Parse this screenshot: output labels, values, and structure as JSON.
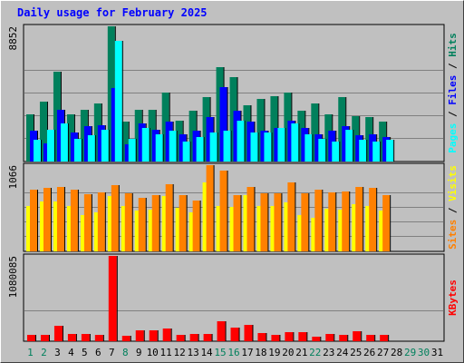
{
  "title": "Daily usage for February 2025",
  "colors": {
    "hits": "#00805c",
    "files": "#0000ff",
    "pages": "#00ffff",
    "visits": "#ffff00",
    "sites": "#ff8000",
    "kbytes": "#ff0000",
    "weekend_day": "#00805c",
    "weekday": "#000000"
  },
  "chart_data": [
    {
      "type": "bar",
      "title": "Hits / Files / Pages",
      "ylabel_max": "8852",
      "ylim": [
        0,
        8852
      ],
      "legend": [
        {
          "name": "Pages",
          "color": "#00ffff"
        },
        {
          "name": "Files",
          "color": "#0000ff"
        },
        {
          "name": "Hits",
          "color": "#00805c"
        }
      ],
      "categories": [
        1,
        2,
        3,
        4,
        5,
        6,
        7,
        8,
        9,
        10,
        11,
        12,
        13,
        14,
        15,
        16,
        17,
        18,
        19,
        20,
        21,
        22,
        23,
        24,
        25,
        26,
        27,
        28
      ],
      "series": [
        {
          "name": "Hits",
          "values": [
            3100,
            3900,
            5900,
            3100,
            3400,
            3800,
            8850,
            2600,
            3400,
            3400,
            4500,
            2700,
            3300,
            4200,
            6200,
            5500,
            3700,
            4100,
            4300,
            4500,
            3300,
            3800,
            3100,
            4200,
            3000,
            2900,
            2600,
            0
          ]
        },
        {
          "name": "Files",
          "values": [
            2000,
            1200,
            3400,
            1900,
            2300,
            2400,
            4800,
            1100,
            2500,
            2100,
            2600,
            1800,
            2000,
            2900,
            4900,
            3300,
            2600,
            2000,
            2200,
            2700,
            2200,
            1800,
            2000,
            2300,
            1700,
            1800,
            1600,
            0
          ]
        },
        {
          "name": "Pages",
          "values": [
            1400,
            2100,
            2500,
            1500,
            1700,
            2100,
            7900,
            1500,
            2200,
            1800,
            2000,
            1300,
            1600,
            1900,
            2000,
            2700,
            1900,
            1900,
            2200,
            2500,
            1800,
            1500,
            1300,
            2100,
            1400,
            1300,
            1400,
            0
          ]
        }
      ]
    },
    {
      "type": "bar",
      "title": "Visits / Sites",
      "ylabel_max": "1066",
      "ylim": [
        0,
        1066
      ],
      "legend": [
        {
          "name": "Sites",
          "color": "#ff8000"
        },
        {
          "name": "Visits",
          "color": "#ffff00"
        }
      ],
      "categories": [
        1,
        2,
        3,
        4,
        5,
        6,
        7,
        8,
        9,
        10,
        11,
        12,
        13,
        14,
        15,
        16,
        17,
        18,
        19,
        20,
        21,
        22,
        23,
        24,
        25,
        26,
        27,
        28
      ],
      "series": [
        {
          "name": "Visits",
          "values": [
            560,
            620,
            620,
            560,
            450,
            480,
            680,
            560,
            500,
            520,
            690,
            540,
            480,
            850,
            560,
            550,
            700,
            560,
            560,
            610,
            450,
            420,
            530,
            520,
            580,
            560,
            510,
            0
          ]
        },
        {
          "name": "Sites",
          "values": [
            760,
            790,
            800,
            760,
            710,
            730,
            820,
            720,
            660,
            700,
            830,
            700,
            630,
            1066,
            1000,
            700,
            800,
            720,
            720,
            850,
            720,
            760,
            730,
            740,
            800,
            790,
            700,
            0
          ]
        }
      ]
    },
    {
      "type": "bar",
      "title": "KBytes",
      "ylabel_max": "1080085",
      "ylim": [
        0,
        1080085
      ],
      "legend": [
        {
          "name": "KBytes",
          "color": "#ff0000"
        }
      ],
      "categories": [
        1,
        2,
        3,
        4,
        5,
        6,
        7,
        8,
        9,
        10,
        11,
        12,
        13,
        14,
        15,
        16,
        17,
        18,
        19,
        20,
        21,
        22,
        23,
        24,
        25,
        26,
        27,
        28
      ],
      "series": [
        {
          "name": "KBytes",
          "values": [
            85000,
            85000,
            190000,
            90000,
            90000,
            75000,
            1080085,
            65000,
            140000,
            140000,
            160000,
            80000,
            90000,
            95000,
            250000,
            170000,
            210000,
            100000,
            80000,
            120000,
            110000,
            60000,
            90000,
            75000,
            130000,
            75000,
            75000,
            0
          ]
        }
      ]
    }
  ],
  "days": [
    "1",
    "2",
    "3",
    "4",
    "5",
    "6",
    "7",
    "8",
    "9",
    "10",
    "11",
    "12",
    "13",
    "14",
    "15",
    "16",
    "17",
    "18",
    "19",
    "20",
    "21",
    "22",
    "23",
    "24",
    "25",
    "26",
    "27",
    "28",
    "29",
    "30",
    "31"
  ],
  "weekend_days": [
    1,
    2,
    8,
    15,
    16,
    22,
    29,
    30
  ]
}
